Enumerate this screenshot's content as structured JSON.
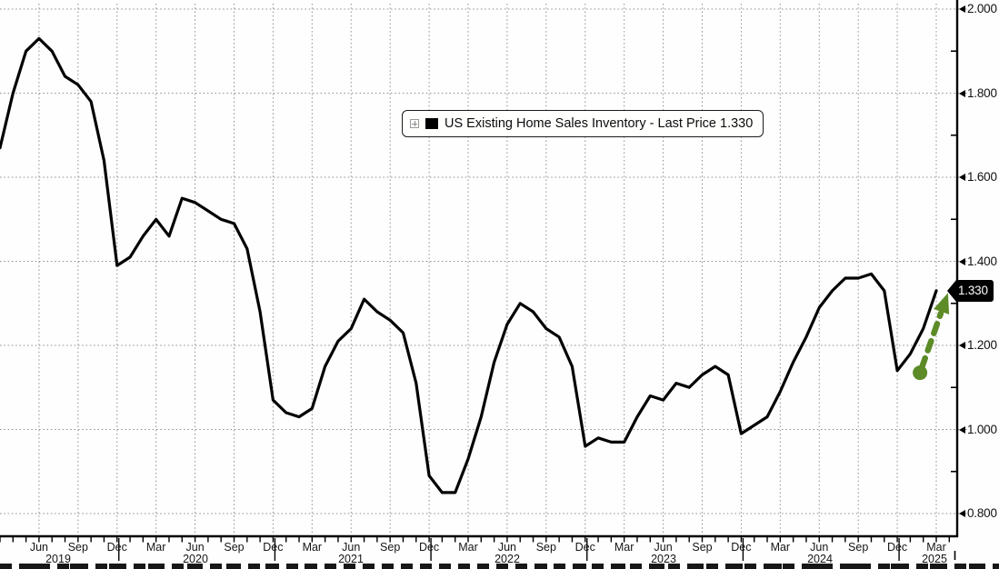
{
  "legend": {
    "label": "US Existing Home Sales Inventory - Last Price 1.330"
  },
  "last_price": {
    "label": "1.330"
  },
  "colors": {
    "line": "#000000",
    "annotation_green": "#5c8b27",
    "grid": "#8d8d8d",
    "axis": "#000000",
    "badge_bg": "#000000",
    "badge_text": "#ffffff"
  },
  "chart_data": {
    "type": "line",
    "title": "US Existing Home Sales Inventory - Last Price 1.330",
    "legend_position": "top-center",
    "grid": "dotted",
    "x_start_month": "2019-03",
    "x_end_month": "2025-03",
    "x_quarter_labels": [
      "Jun",
      "Sep",
      "Dec",
      "Mar",
      "Jun",
      "Sep",
      "Dec",
      "Mar",
      "Jun",
      "Sep",
      "Dec",
      "Mar",
      "Jun",
      "Sep",
      "Dec",
      "Mar",
      "Jun",
      "Sep",
      "Dec",
      "Mar",
      "Jun",
      "Sep",
      "Dec",
      "Mar"
    ],
    "x_year_labels": [
      "2019",
      "2020",
      "2021",
      "2022",
      "2023",
      "2024",
      "2025"
    ],
    "y_tick_labels": [
      "2.000",
      "1.800",
      "1.600",
      "1.400",
      "1.200",
      "1.000",
      "0.800"
    ],
    "ylim": [
      0.8,
      2.0
    ],
    "y_minor_step": 0.1,
    "series": [
      {
        "name": "US Existing Home Sales Inventory",
        "color": "#000000",
        "last_price": 1.33,
        "monthly_values": [
          1.67,
          1.8,
          1.9,
          1.93,
          1.9,
          1.84,
          1.82,
          1.78,
          1.64,
          1.39,
          1.41,
          1.46,
          1.5,
          1.46,
          1.55,
          1.54,
          1.52,
          1.5,
          1.49,
          1.43,
          1.28,
          1.07,
          1.04,
          1.03,
          1.05,
          1.15,
          1.21,
          1.24,
          1.31,
          1.28,
          1.26,
          1.23,
          1.11,
          0.89,
          0.85,
          0.85,
          0.93,
          1.03,
          1.16,
          1.25,
          1.3,
          1.28,
          1.24,
          1.22,
          1.15,
          0.96,
          0.98,
          0.97,
          0.97,
          1.03,
          1.08,
          1.07,
          1.11,
          1.1,
          1.13,
          1.15,
          1.13,
          0.99,
          1.01,
          1.03,
          1.09,
          1.16,
          1.22,
          1.29,
          1.33,
          1.36,
          1.36,
          1.37,
          1.33,
          1.14,
          1.18,
          1.24,
          1.33
        ]
      }
    ],
    "annotation": {
      "type": "arrow-up-dashed",
      "color": "#5c8b27",
      "from": {
        "month_index": 70.75,
        "value": 1.135
      },
      "to": {
        "month_index": 72.9,
        "value": 1.325
      }
    }
  }
}
